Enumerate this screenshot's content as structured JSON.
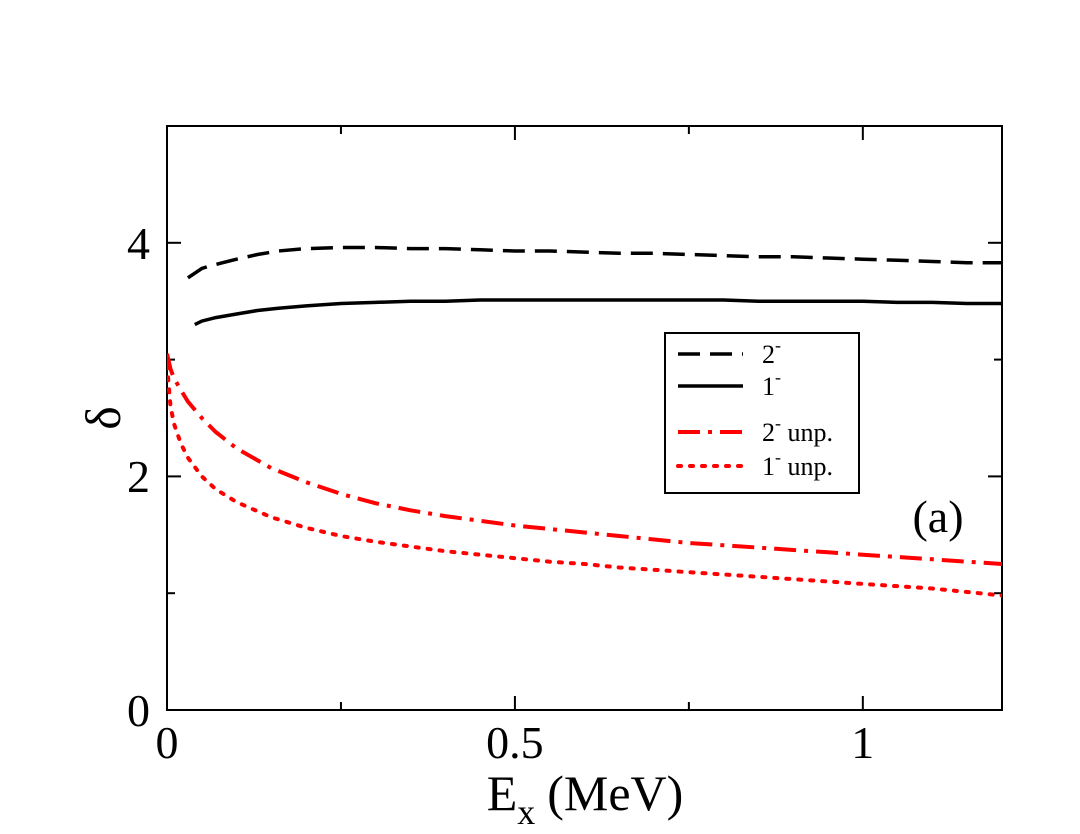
{
  "chart_data": {
    "type": "line",
    "title": "",
    "xlabel": "E",
    "xlabel_subscript": "x",
    "xlabel_unit": "(MeV)",
    "ylabel": "δ",
    "xlim": [
      0,
      1.2
    ],
    "ylim": [
      0,
      5
    ],
    "x_ticks": [
      0,
      0.5,
      1
    ],
    "x_tick_labels": [
      "0",
      "0.5",
      "1"
    ],
    "y_ticks": [
      0,
      2,
      4
    ],
    "y_tick_labels": [
      "0",
      "2",
      "4"
    ],
    "panel_label": "(a)",
    "legend_position": "center-right",
    "series": [
      {
        "name": "2-",
        "label_main": "2",
        "label_sup": "-",
        "label_suffix": "",
        "color": "#000000",
        "style": "dashed",
        "x": [
          0.03,
          0.035,
          0.04,
          0.05,
          0.06,
          0.08,
          0.1,
          0.13,
          0.16,
          0.2,
          0.25,
          0.3,
          0.35,
          0.4,
          0.45,
          0.5,
          0.55,
          0.6,
          0.65,
          0.7,
          0.75,
          0.8,
          0.85,
          0.9,
          0.95,
          1.0,
          1.05,
          1.1,
          1.15,
          1.2
        ],
        "y": [
          3.7,
          3.72,
          3.74,
          3.78,
          3.8,
          3.83,
          3.86,
          3.9,
          3.93,
          3.95,
          3.96,
          3.96,
          3.95,
          3.95,
          3.94,
          3.93,
          3.93,
          3.92,
          3.91,
          3.91,
          3.9,
          3.89,
          3.88,
          3.88,
          3.87,
          3.86,
          3.85,
          3.84,
          3.83,
          3.83
        ]
      },
      {
        "name": "1-",
        "label_main": "1",
        "label_sup": "-",
        "label_suffix": "",
        "color": "#000000",
        "style": "solid",
        "x": [
          0.04,
          0.05,
          0.07,
          0.1,
          0.13,
          0.16,
          0.2,
          0.25,
          0.3,
          0.35,
          0.4,
          0.45,
          0.5,
          0.55,
          0.6,
          0.65,
          0.7,
          0.75,
          0.8,
          0.85,
          0.9,
          0.95,
          1.0,
          1.05,
          1.1,
          1.15,
          1.2
        ],
        "y": [
          3.3,
          3.33,
          3.36,
          3.39,
          3.42,
          3.44,
          3.46,
          3.48,
          3.49,
          3.5,
          3.5,
          3.51,
          3.51,
          3.51,
          3.51,
          3.51,
          3.51,
          3.51,
          3.51,
          3.5,
          3.5,
          3.5,
          3.5,
          3.49,
          3.49,
          3.48,
          3.48
        ]
      },
      {
        "name": "2- unp.",
        "label_main": "2",
        "label_sup": "-",
        "label_suffix": " unp.",
        "color": "#ff0000",
        "style": "dashdot",
        "x": [
          0.0,
          0.005,
          0.01,
          0.02,
          0.03,
          0.05,
          0.07,
          0.1,
          0.15,
          0.2,
          0.25,
          0.3,
          0.35,
          0.4,
          0.45,
          0.5,
          0.55,
          0.6,
          0.65,
          0.7,
          0.75,
          0.8,
          0.85,
          0.9,
          0.95,
          1.0,
          1.05,
          1.1,
          1.15,
          1.2
        ],
        "y": [
          3.05,
          2.92,
          2.84,
          2.74,
          2.64,
          2.5,
          2.38,
          2.24,
          2.07,
          1.95,
          1.85,
          1.77,
          1.71,
          1.66,
          1.62,
          1.58,
          1.55,
          1.52,
          1.49,
          1.46,
          1.43,
          1.41,
          1.39,
          1.37,
          1.35,
          1.33,
          1.31,
          1.29,
          1.27,
          1.25
        ]
      },
      {
        "name": "1- unp.",
        "label_main": "1",
        "label_sup": "-",
        "label_suffix": " unp.",
        "color": "#ff0000",
        "style": "dotted",
        "x": [
          0.0,
          0.005,
          0.01,
          0.02,
          0.03,
          0.05,
          0.07,
          0.1,
          0.15,
          0.2,
          0.25,
          0.3,
          0.35,
          0.4,
          0.45,
          0.5,
          0.55,
          0.6,
          0.65,
          0.7,
          0.75,
          0.8,
          0.85,
          0.9,
          0.95,
          1.0,
          1.05,
          1.1,
          1.15,
          1.2
        ],
        "y": [
          2.95,
          2.6,
          2.45,
          2.28,
          2.16,
          2.0,
          1.89,
          1.78,
          1.65,
          1.56,
          1.49,
          1.44,
          1.4,
          1.36,
          1.33,
          1.3,
          1.27,
          1.25,
          1.22,
          1.2,
          1.18,
          1.16,
          1.14,
          1.12,
          1.1,
          1.08,
          1.06,
          1.04,
          1.01,
          0.98
        ]
      }
    ]
  }
}
